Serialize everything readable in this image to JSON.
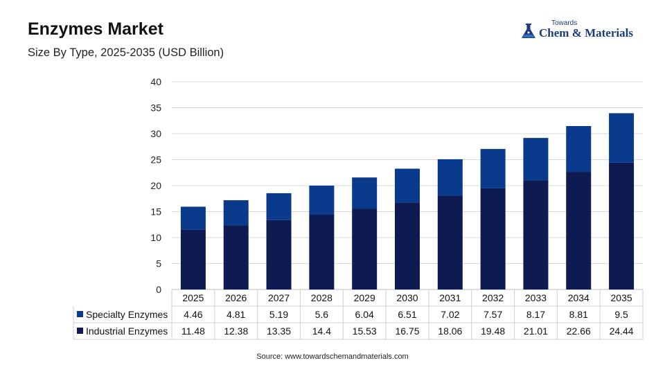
{
  "title": "Enzymes Market",
  "subtitle": "Size By Type, 2025-2035 (USD Billion)",
  "logo": {
    "small": "Towards",
    "main": "Chem & Materials"
  },
  "source": "Source: www.towardschemandmaterials.com",
  "colors": {
    "specialty": "#0a3a8c",
    "industrial": "#0e1a52",
    "grid": "#d9d9d9"
  },
  "chart_data": {
    "type": "bar",
    "stacked": true,
    "title": "Enzymes Market",
    "subtitle": "Size By Type, 2025-2035 (USD Billion)",
    "categories": [
      "2025",
      "2026",
      "2027",
      "2028",
      "2029",
      "2030",
      "2031",
      "2032",
      "2033",
      "2034",
      "2035"
    ],
    "series": [
      {
        "name": "Specialty Enzymes",
        "values": [
          4.46,
          4.81,
          5.19,
          5.6,
          6.04,
          6.51,
          7.02,
          7.57,
          8.17,
          8.81,
          9.5
        ]
      },
      {
        "name": "Industrial Enzymes",
        "values": [
          11.48,
          12.38,
          13.35,
          14.4,
          15.53,
          16.75,
          18.06,
          19.48,
          21.01,
          22.66,
          24.44
        ]
      }
    ],
    "yticks": [
      0,
      5,
      10,
      15,
      20,
      25,
      30,
      35,
      40
    ],
    "ylim": [
      0,
      40
    ],
    "grid": true,
    "legend": "data table below chart"
  }
}
